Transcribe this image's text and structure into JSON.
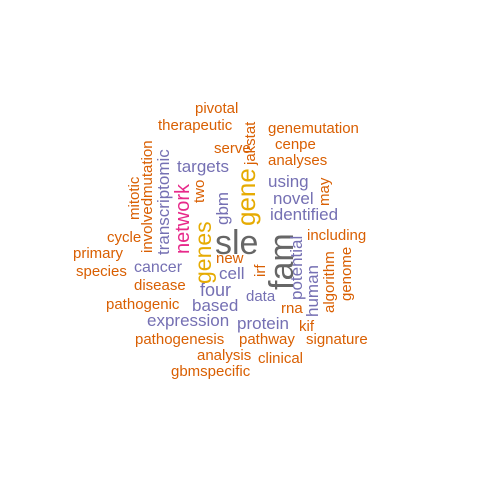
{
  "colors": {
    "orange": "#D95F02",
    "purple": "#7570B3",
    "magenta": "#E7298A",
    "gold": "#E6AB02",
    "gray": "#666666"
  },
  "words": {
    "pivotal": "pivotal",
    "therapeutic": "therapeutic",
    "jakstat": "jakstat",
    "genemutation": "genemutation",
    "serve": "serve",
    "cenpe": "cenpe",
    "mitotic": "mitotic",
    "involvedmutation": "involvedmutation",
    "transcriptomic": "transcriptomic",
    "targets": "targets",
    "analyses": "analyses",
    "network": "network",
    "two": "two",
    "gbm": "gbm",
    "gene": "gene",
    "using": "using",
    "may": "may",
    "novel": "novel",
    "identified": "identified",
    "cycle": "cycle",
    "genes": "genes",
    "sle": "sle",
    "fam": "fam",
    "including": "including",
    "primary": "primary",
    "new": "new",
    "irf": "irf",
    "potential": "potential",
    "human": "human",
    "algorithm": "algorithm",
    "genome": "genome",
    "species": "species",
    "cancer": "cancer",
    "cell": "cell",
    "disease": "disease",
    "four": "four",
    "data": "data",
    "pathogenic": "pathogenic",
    "based": "based",
    "rna": "rna",
    "expression": "expression",
    "protein": "protein",
    "kif": "kif",
    "pathogenesis": "pathogenesis",
    "pathway": "pathway",
    "signature": "signature",
    "analysis": "analysis",
    "clinical": "clinical",
    "gbmspecific": "gbmspecific"
  }
}
